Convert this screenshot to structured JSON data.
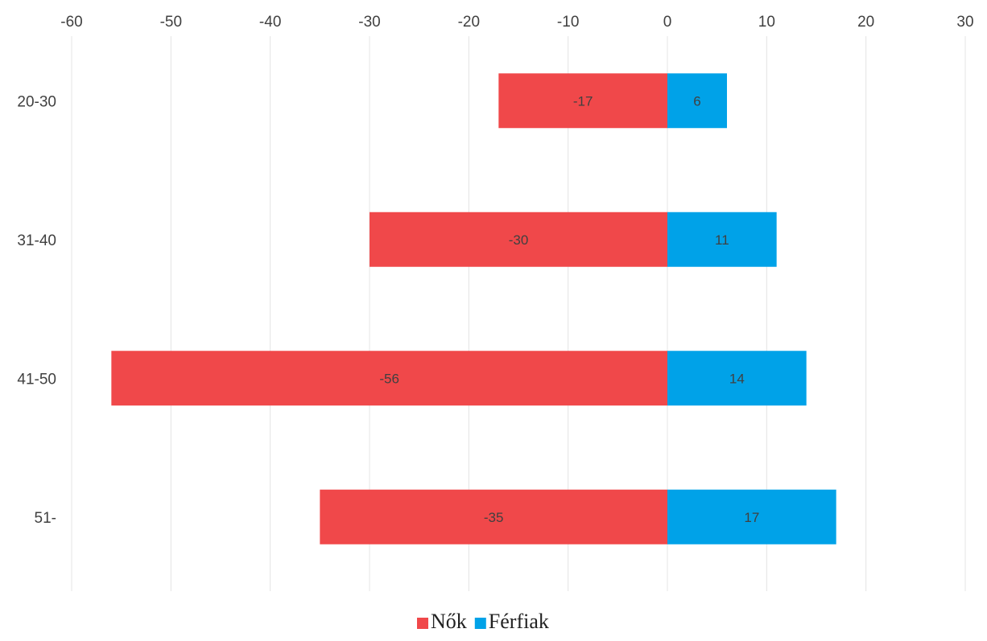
{
  "chart_data": {
    "type": "bar",
    "orientation": "horizontal",
    "stacked": true,
    "title": "",
    "xlabel": "",
    "ylabel": "",
    "categories": [
      "20-30",
      "31-40",
      "41-50",
      "51-"
    ],
    "x_ticks": [
      -60,
      -50,
      -40,
      -30,
      -20,
      -10,
      0,
      10,
      20,
      30
    ],
    "xlim": [
      -60,
      30
    ],
    "x_axis_position": "top",
    "grid": true,
    "legend": "bottom",
    "series": [
      {
        "name": "Nők",
        "values": [
          -17,
          -30,
          -56,
          -35
        ],
        "color": "#f0484a"
      },
      {
        "name": "Férfiak",
        "values": [
          6,
          11,
          14,
          17
        ],
        "color": "#00a2e8"
      }
    ]
  }
}
